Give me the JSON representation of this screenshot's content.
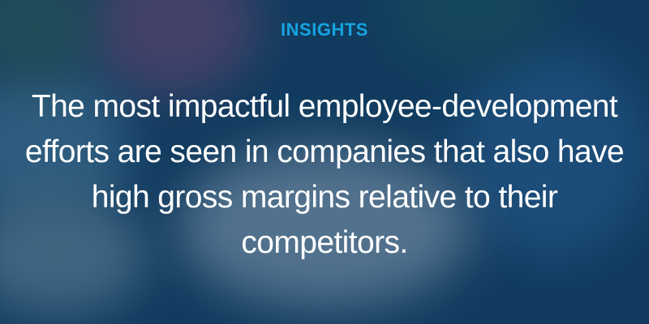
{
  "eyebrow": "INSIGHTS",
  "quote": "The most impactful employee-development efforts are seen in companies that also have high gross margins relative to their competitors.",
  "colors": {
    "accent": "#16a3e0",
    "overlay": "#0a3255",
    "text": "#ffffff"
  }
}
